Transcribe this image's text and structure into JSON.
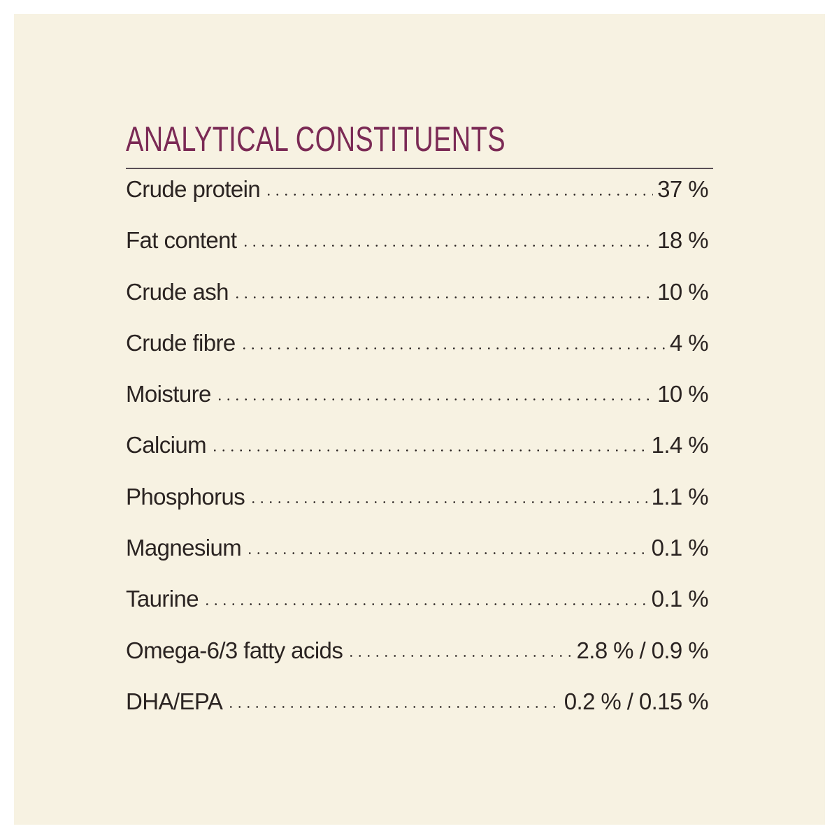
{
  "title": "ANALYTICAL CONSTITUENTS",
  "table": {
    "rows": [
      [
        "Crude protein",
        "37 %"
      ],
      [
        "Fat content",
        "18 %"
      ],
      [
        "Crude ash",
        "10 %"
      ],
      [
        "Crude fibre",
        "4 %"
      ],
      [
        "Moisture",
        "10 %"
      ],
      [
        "Calcium",
        "1.4 %"
      ],
      [
        "Phosphorus",
        "1.1 %"
      ],
      [
        "Magnesium",
        "0.1 %"
      ],
      [
        "Taurine",
        "0.1 %"
      ],
      [
        "Omega-6/3 fatty acids",
        "2.8 % / 0.9 %"
      ],
      [
        "DHA/EPA",
        "0.2 % / 0.15 %"
      ]
    ]
  }
}
